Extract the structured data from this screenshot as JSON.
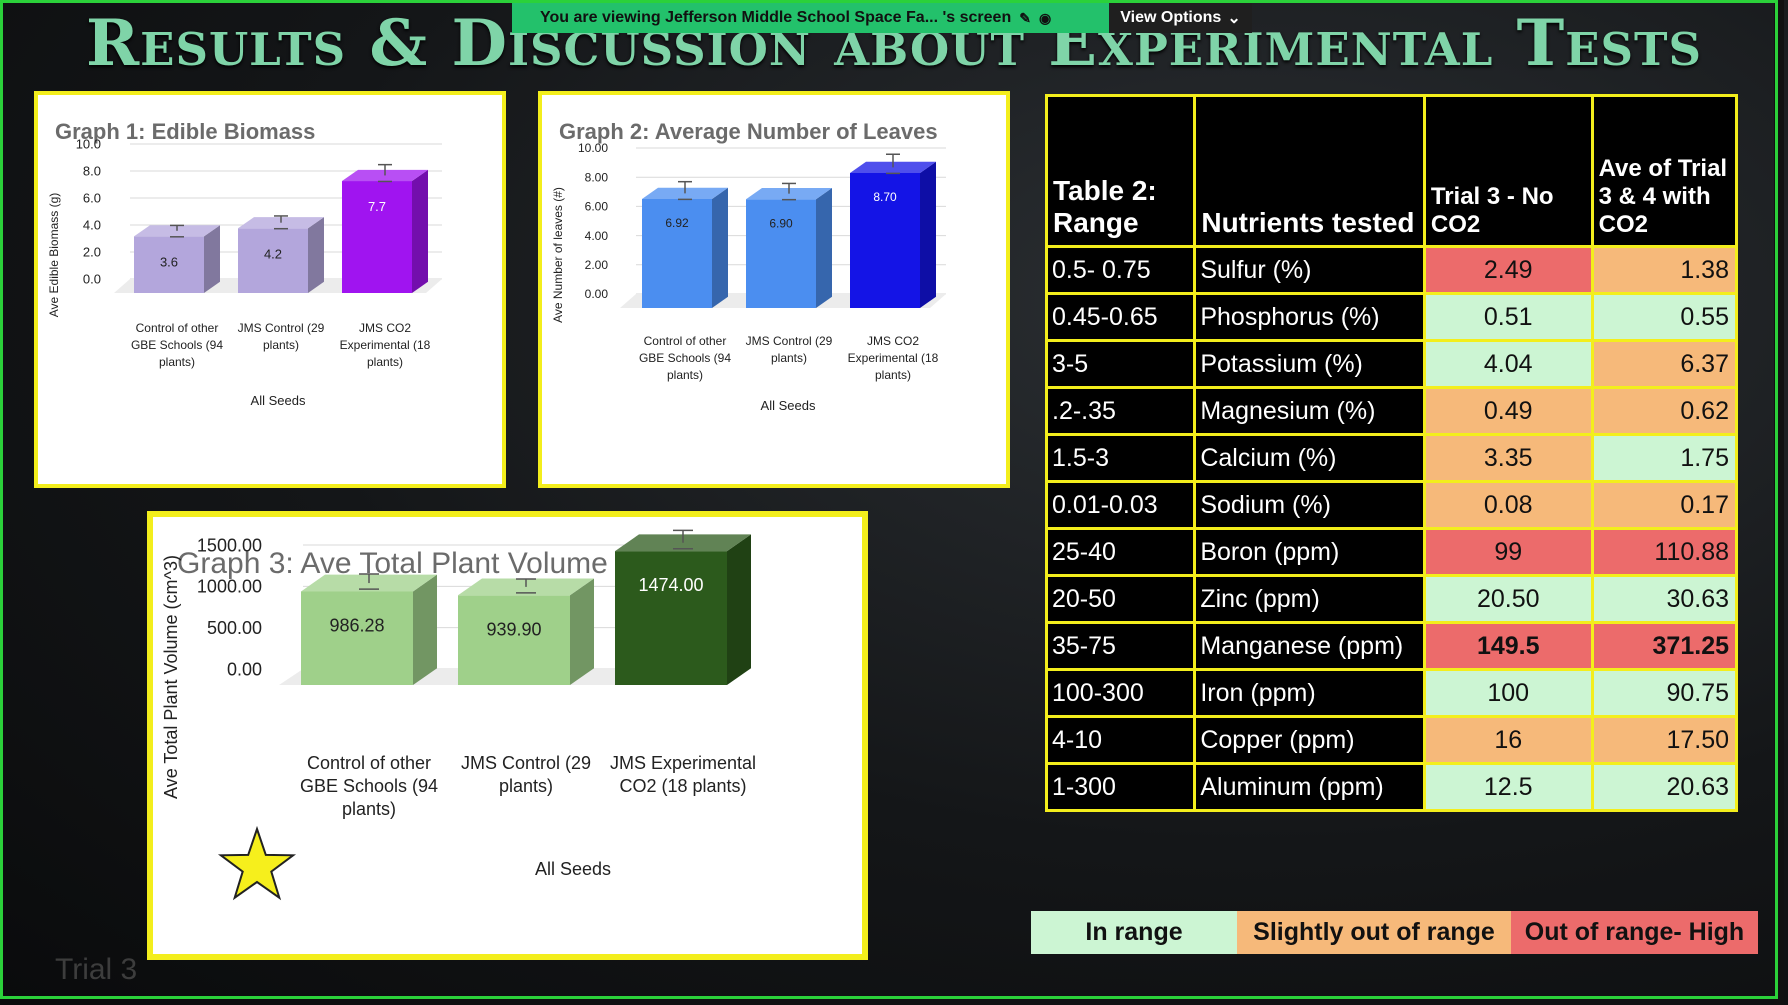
{
  "share_bar": {
    "text": "You are viewing  Jefferson Middle School Space Fa... 's screen",
    "view_options": "View Options"
  },
  "title": "Results & Discussion about Experimental Tests",
  "colors": {
    "in_range": "#ccf5d3",
    "slightly_out": "#f6b97a",
    "out_high": "#ec6b6b",
    "border": "#f3ee1c"
  },
  "graph1": {
    "title": "Graph 1: Edible Biomass",
    "chart_data": {
      "type": "bar",
      "ylabel": "Ave Edible Biomass (g)",
      "xlabel": "All Seeds",
      "ylim": [
        0,
        10
      ],
      "ticks": [
        "10.0",
        "8.0",
        "6.0",
        "4.0",
        "2.0",
        "0.0"
      ],
      "categories": [
        "Control of other GBE Schools (94 plants)",
        "JMS Control (29 plants)",
        "JMS CO2 Experimental (18 plants)"
      ],
      "values": [
        3.6,
        4.2,
        7.7
      ],
      "value_labels": [
        "3.6",
        "4.2",
        "7.7"
      ],
      "error_bars": [
        0.4,
        0.5,
        0.8
      ],
      "colors": [
        "#b3a6dc",
        "#b3a6dc",
        "#a014f0"
      ]
    }
  },
  "graph2": {
    "title": "Graph 2: Average Number of Leaves",
    "chart_data": {
      "type": "bar",
      "ylabel": "Ave Number of leaves (#)",
      "xlabel": "All Seeds",
      "ylim": [
        0,
        10
      ],
      "ticks": [
        "10.00",
        "8.00",
        "6.00",
        "4.00",
        "2.00",
        "0.00"
      ],
      "categories": [
        "Control of other GBE Schools (94 plants)",
        "JMS Control (29 plants)",
        "JMS CO2 Experimental (18 plants)"
      ],
      "values": [
        6.92,
        6.9,
        8.7
      ],
      "value_labels": [
        "6.92",
        "6.90",
        "8.70"
      ],
      "error_bars": [
        0.8,
        0.7,
        0.9
      ],
      "colors": [
        "#4b8ef0",
        "#4b8ef0",
        "#1414e6"
      ]
    }
  },
  "graph3": {
    "title": "Graph 3: Ave Total Plant Volume (cm^3)",
    "chart_data": {
      "type": "bar",
      "ylabel": "Ave Total Plant Volume (cm^3)",
      "xlabel": "All Seeds",
      "ylim": [
        0,
        1500
      ],
      "ticks": [
        "1500.00",
        "1000.00",
        "500.00",
        "0.00"
      ],
      "categories": [
        "Control of other GBE Schools (94 plants)",
        "JMS Control (29 plants)",
        "JMS Experimental CO2  (18 plants)"
      ],
      "values": [
        986.28,
        939.9,
        1474.0
      ],
      "value_labels": [
        "986.28",
        "939.90",
        "1474.00"
      ],
      "error_bars": [
        110,
        95,
        150
      ],
      "colors": [
        "#9fd08a",
        "#9fd08a",
        "#2c5a1c"
      ]
    }
  },
  "table": {
    "headers": [
      "Table 2: Range",
      "Nutrients tested",
      "Trial 3 - No CO2",
      "Ave of Trial 3 & 4 with CO2"
    ],
    "rows": [
      {
        "range": "0.5- 0.75",
        "nutrient": "Sulfur (%)",
        "trial3": "2.49",
        "ave": "1.38",
        "s3": "out_high",
        "sa": "slightly_out"
      },
      {
        "range": "0.45-0.65",
        "nutrient": "Phosphorus (%)",
        "trial3": "0.51",
        "ave": "0.55",
        "s3": "in_range",
        "sa": "in_range"
      },
      {
        "range": "3-5",
        "nutrient": "Potassium (%)",
        "trial3": "4.04",
        "ave": "6.37",
        "s3": "in_range",
        "sa": "slightly_out"
      },
      {
        "range": ".2-.35",
        "nutrient": "Magnesium (%)",
        "trial3": "0.49",
        "ave": "0.62",
        "s3": "slightly_out",
        "sa": "slightly_out"
      },
      {
        "range": "1.5-3",
        "nutrient": "Calcium (%)",
        "trial3": "3.35",
        "ave": "1.75",
        "s3": "slightly_out",
        "sa": "in_range"
      },
      {
        "range": "0.01-0.03",
        "nutrient": "Sodium (%)",
        "trial3": "0.08",
        "ave": "0.17",
        "s3": "slightly_out",
        "sa": "slightly_out"
      },
      {
        "range": "25-40",
        "nutrient": "Boron (ppm)",
        "trial3": "99",
        "ave": "110.88",
        "s3": "out_high",
        "sa": "out_high"
      },
      {
        "range": "20-50",
        "nutrient": "Zinc (ppm)",
        "trial3": "20.50",
        "ave": "30.63",
        "s3": "in_range",
        "sa": "in_range"
      },
      {
        "range": "35-75",
        "nutrient": "Manganese (ppm)",
        "trial3": "149.5",
        "ave": "371.25",
        "s3": "out_high",
        "sa": "out_high",
        "bold": true
      },
      {
        "range": "100-300",
        "nutrient": "Iron (ppm)",
        "trial3": "100",
        "ave": "90.75",
        "s3": "in_range",
        "sa": "in_range"
      },
      {
        "range": "4-10",
        "nutrient": "Copper (ppm)",
        "trial3": "16",
        "ave": "17.50",
        "s3": "slightly_out",
        "sa": "slightly_out"
      },
      {
        "range": "1-300",
        "nutrient": "Aluminum (ppm)",
        "trial3": "12.5",
        "ave": "20.63",
        "s3": "in_range",
        "sa": "in_range"
      }
    ]
  },
  "legend": [
    "In range",
    "Slightly out of range",
    "Out of range- High"
  ],
  "faint_text": "Trial 3"
}
